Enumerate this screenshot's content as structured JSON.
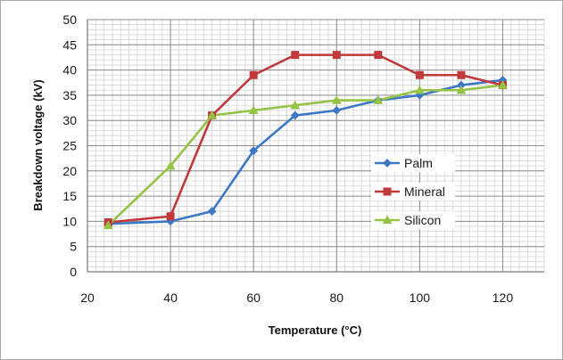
{
  "chart_data": {
    "type": "line",
    "title": "",
    "xlabel": "Temperature (°C)",
    "ylabel": "Breakdown voltage (kV)",
    "xlim": [
      20,
      130
    ],
    "ylim": [
      0,
      50
    ],
    "x_ticks": [
      20,
      40,
      60,
      80,
      100,
      120
    ],
    "y_ticks": [
      0,
      5,
      10,
      15,
      20,
      25,
      30,
      35,
      40,
      45,
      50
    ],
    "x_tick_labels": [
      "20",
      "40",
      "60",
      "80",
      "100",
      "120"
    ],
    "y_tick_labels": [
      "0",
      "5",
      "10",
      "15",
      "20",
      "25",
      "30",
      "35",
      "40",
      "45",
      "50"
    ],
    "x_minor_step": 2,
    "y_minor_step": 1,
    "grid": true,
    "legend_position": "right",
    "x": [
      25,
      40,
      50,
      60,
      70,
      80,
      90,
      100,
      110,
      120
    ],
    "series": [
      {
        "name": "Palm",
        "color": "#3d78c7",
        "marker": "diamond",
        "values": [
          9.5,
          10,
          12,
          24,
          31,
          32,
          34,
          35,
          37,
          38
        ]
      },
      {
        "name": "Mineral",
        "color": "#c0393b",
        "marker": "square",
        "values": [
          9.8,
          11,
          31,
          39,
          43,
          43,
          43,
          39,
          39,
          37
        ]
      },
      {
        "name": "Silicon",
        "color": "#94c346",
        "marker": "triangle",
        "values": [
          9.2,
          21,
          31,
          32,
          33,
          34,
          34,
          36,
          36,
          37
        ]
      }
    ]
  }
}
